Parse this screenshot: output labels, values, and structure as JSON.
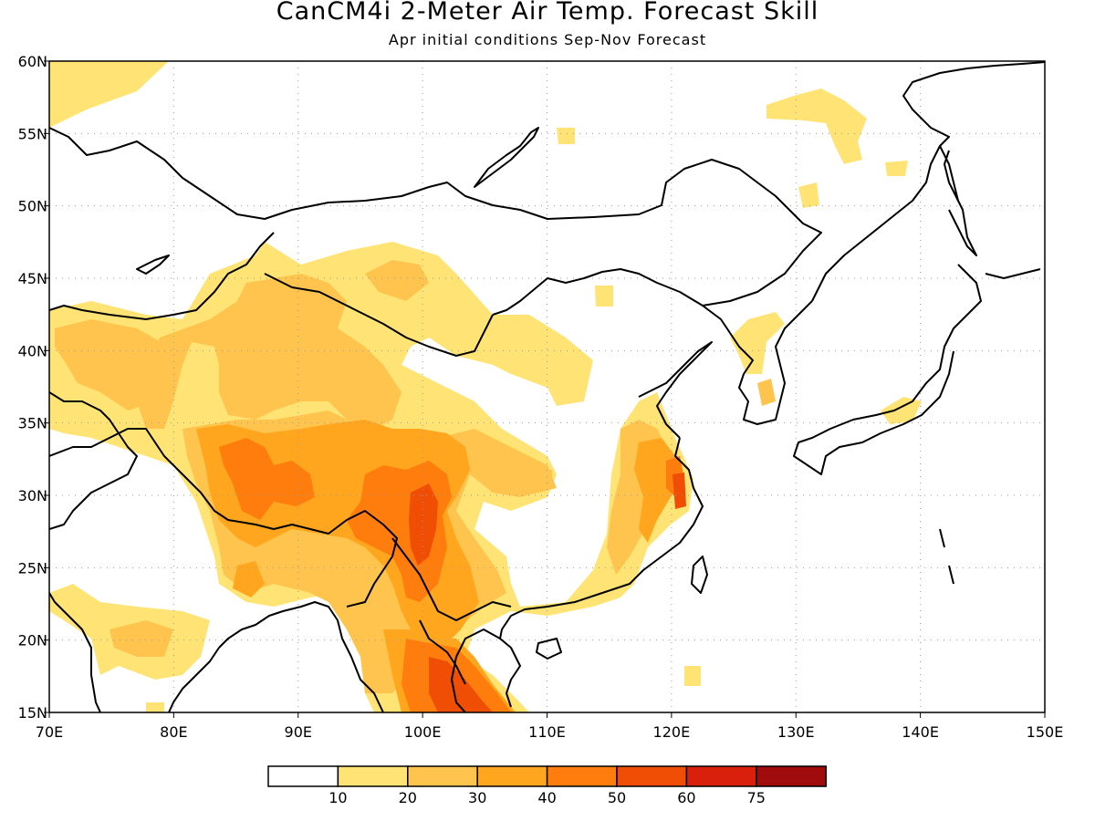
{
  "title": "CanCM4i 2-Meter Air Temp. Forecast Skill",
  "subtitle": "Apr initial conditions  Sep-Nov Forecast",
  "map": {
    "lon_range": [
      70,
      150
    ],
    "lat_range": [
      15,
      60
    ],
    "x_ticks": [
      "70E",
      "80E",
      "90E",
      "100E",
      "110E",
      "120E",
      "130E",
      "140E",
      "150E"
    ],
    "y_ticks": [
      "15N",
      "20N",
      "25N",
      "30N",
      "35N",
      "40N",
      "45N",
      "50N",
      "55N",
      "60N"
    ],
    "gridlines": "dotted"
  },
  "colorbar": {
    "colors": [
      "#ffffff",
      "#ffe475",
      "#ffc44d",
      "#ffa51e",
      "#ff7d0c",
      "#f04d05",
      "#d9200d",
      "#a00b0b"
    ],
    "labels": [
      "10",
      "20",
      "30",
      "40",
      "50",
      "60",
      "75"
    ]
  },
  "skill_regions": [
    {
      "level": 1,
      "description": "broad moderate skill across China, Tibet and Indochina"
    },
    {
      "level": 2,
      "description": "Tibetan Plateau, Sichuan and western China"
    },
    {
      "level": 3,
      "description": "southern Tibet, Yunnan and southeast coast"
    },
    {
      "level": 4,
      "description": "Tibet, Myanmar and Yangtze delta"
    },
    {
      "level": 5,
      "description": "Yunnan, Laos and Vietnam"
    }
  ]
}
